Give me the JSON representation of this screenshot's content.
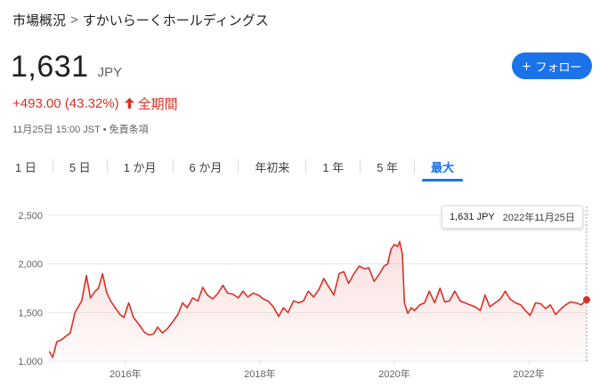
{
  "breadcrumb": {
    "parent": "市場概況",
    "separator": ">",
    "current": "すかいらーくホールディングス"
  },
  "quote": {
    "price": "1,631",
    "currency": "JPY",
    "change": "+493.00 (43.32%)",
    "direction": "up",
    "period": "全期間",
    "timestamp": "11月25日 15:00 JST • 免責条項"
  },
  "follow_button": {
    "label": "フォロー"
  },
  "tabs": [
    {
      "label": "1 日",
      "active": false
    },
    {
      "label": "5 日",
      "active": false
    },
    {
      "label": "1 か月",
      "active": false
    },
    {
      "label": "6 か月",
      "active": false
    },
    {
      "label": "年初来",
      "active": false
    },
    {
      "label": "1 年",
      "active": false
    },
    {
      "label": "5 年",
      "active": false
    },
    {
      "label": "最大",
      "active": true
    }
  ],
  "tooltip": {
    "value": "1,631 JPY",
    "date": "2022年11月25日"
  },
  "colors": {
    "line": "#d93025",
    "accent": "#1a73e8",
    "grid": "#e8eaed"
  },
  "chart_data": {
    "type": "area",
    "title": "",
    "xlabel": "",
    "ylabel": "",
    "ylim": [
      1000,
      2500
    ],
    "xlim": [
      2014.85,
      2022.9
    ],
    "y_ticks": [
      1000,
      1500,
      2000,
      2500
    ],
    "y_tick_labels": [
      "1,000",
      "1,500",
      "2,000",
      "2,500"
    ],
    "x_ticks": [
      2016,
      2018,
      2020,
      2022
    ],
    "x_tick_labels": [
      "2016年",
      "2018年",
      "2020年",
      "2022年"
    ],
    "grid": true,
    "series": [
      {
        "x": [
          2014.87,
          2014.92,
          2014.98,
          2015.05,
          2015.12,
          2015.18,
          2015.25,
          2015.3,
          2015.35,
          2015.42,
          2015.48,
          2015.55,
          2015.6,
          2015.66,
          2015.72,
          2015.78,
          2015.85,
          2015.92,
          2015.98,
          2016.05,
          2016.12,
          2016.2,
          2016.28,
          2016.35,
          2016.42,
          2016.48,
          2016.55,
          2016.62,
          2016.7,
          2016.78,
          2016.85,
          2016.92,
          2017.0,
          2017.08,
          2017.15,
          2017.22,
          2017.3,
          2017.38,
          2017.45,
          2017.52,
          2017.6,
          2017.68,
          2017.75,
          2017.82,
          2017.9,
          2017.98,
          2018.05,
          2018.12,
          2018.2,
          2018.28,
          2018.35,
          2018.42,
          2018.5,
          2018.58,
          2018.65,
          2018.72,
          2018.8,
          2018.88,
          2018.95,
          2019.02,
          2019.1,
          2019.18,
          2019.25,
          2019.32,
          2019.4,
          2019.48,
          2019.55,
          2019.62,
          2019.7,
          2019.78,
          2019.85,
          2019.9,
          2019.95,
          2020.0,
          2020.05,
          2020.08,
          2020.12,
          2020.15,
          2020.2,
          2020.25,
          2020.3,
          2020.38,
          2020.45,
          2020.52,
          2020.6,
          2020.68,
          2020.75,
          2020.82,
          2020.9,
          2020.98,
          2021.05,
          2021.12,
          2021.2,
          2021.28,
          2021.35,
          2021.42,
          2021.5,
          2021.58,
          2021.65,
          2021.72,
          2021.8,
          2021.88,
          2021.95,
          2022.02,
          2022.1,
          2022.18,
          2022.25,
          2022.32,
          2022.4,
          2022.48,
          2022.55,
          2022.62,
          2022.7,
          2022.78,
          2022.86
        ],
        "values": [
          1100,
          1040,
          1200,
          1220,
          1260,
          1290,
          1500,
          1560,
          1620,
          1880,
          1650,
          1720,
          1750,
          1900,
          1710,
          1620,
          1550,
          1480,
          1450,
          1600,
          1450,
          1380,
          1300,
          1270,
          1280,
          1350,
          1290,
          1330,
          1400,
          1480,
          1600,
          1550,
          1650,
          1620,
          1760,
          1680,
          1640,
          1700,
          1780,
          1700,
          1690,
          1650,
          1720,
          1660,
          1700,
          1680,
          1640,
          1620,
          1560,
          1460,
          1550,
          1500,
          1620,
          1600,
          1620,
          1720,
          1660,
          1740,
          1850,
          1770,
          1680,
          1900,
          1920,
          1800,
          1900,
          1980,
          1950,
          1960,
          1820,
          1900,
          1980,
          2000,
          2150,
          2200,
          2180,
          2230,
          2100,
          1600,
          1490,
          1550,
          1520,
          1580,
          1600,
          1720,
          1600,
          1750,
          1610,
          1620,
          1720,
          1620,
          1600,
          1580,
          1560,
          1520,
          1680,
          1560,
          1600,
          1640,
          1720,
          1640,
          1600,
          1580,
          1520,
          1470,
          1600,
          1590,
          1540,
          1580,
          1480,
          1540,
          1580,
          1610,
          1600,
          1580,
          1631
        ]
      }
    ]
  }
}
